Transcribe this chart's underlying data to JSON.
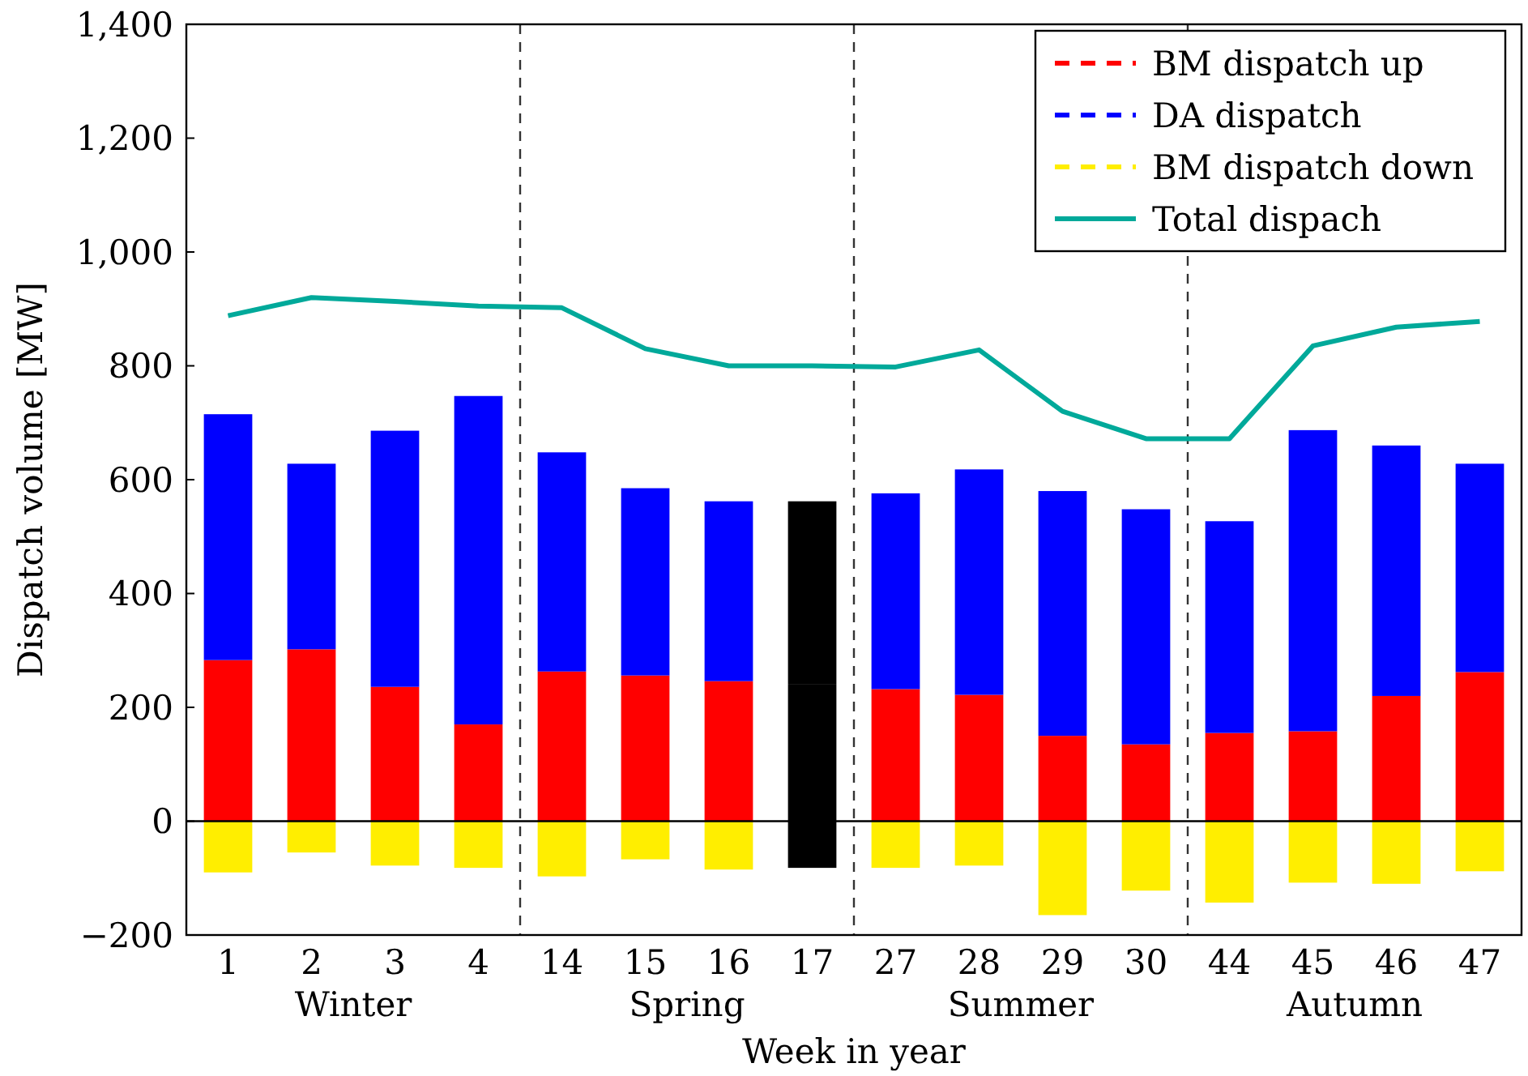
{
  "chart_data": {
    "type": "bar",
    "stacked": true,
    "xlabel": "Week in year",
    "ylabel": "Dispatch volume [MW]",
    "categories": [
      "1",
      "2",
      "3",
      "4",
      "14",
      "15",
      "16",
      "17",
      "27",
      "28",
      "29",
      "30",
      "44",
      "45",
      "46",
      "47"
    ],
    "ylim": [
      -200,
      1400
    ],
    "yticks": [
      {
        "value": -200,
        "label": "−200"
      },
      0,
      200,
      400,
      600,
      800,
      {
        "value": 1000,
        "label": "1,000"
      },
      {
        "value": 1200,
        "label": "1,200"
      },
      {
        "value": 1400,
        "label": "1,400"
      }
    ],
    "series": [
      {
        "name": "BM dispatch up",
        "color": "#ff0000",
        "colors": [
          "#ff0000",
          "#ff0000",
          "#ff0000",
          "#ff0000",
          "#ff0000",
          "#ff0000",
          "#ff0000",
          "#000000",
          "#ff0000",
          "#ff0000",
          "#ff0000",
          "#ff0000",
          "#ff0000",
          "#ff0000",
          "#ff0000",
          "#ff0000"
        ],
        "values": [
          283,
          302,
          236,
          170,
          263,
          256,
          246,
          240,
          232,
          222,
          150,
          135,
          155,
          158,
          220,
          262
        ]
      },
      {
        "name": "DA dispatch",
        "color": "#0000ff",
        "colors": [
          "#0000ff",
          "#0000ff",
          "#0000ff",
          "#0000ff",
          "#0000ff",
          "#0000ff",
          "#0000ff",
          "#000000",
          "#0000ff",
          "#0000ff",
          "#0000ff",
          "#0000ff",
          "#0000ff",
          "#0000ff",
          "#0000ff",
          "#0000ff"
        ],
        "values": [
          432,
          326,
          450,
          577,
          385,
          329,
          316,
          322,
          344,
          396,
          430,
          413,
          372,
          529,
          440,
          366
        ]
      },
      {
        "name": "BM dispatch down",
        "color": "#ffee00",
        "colors": [
          "#ffee00",
          "#ffee00",
          "#ffee00",
          "#ffee00",
          "#ffee00",
          "#ffee00",
          "#ffee00",
          "#000000",
          "#ffee00",
          "#ffee00",
          "#ffee00",
          "#ffee00",
          "#ffee00",
          "#ffee00",
          "#ffee00",
          "#ffee00"
        ],
        "values": [
          -90,
          -55,
          -78,
          -82,
          -97,
          -67,
          -85,
          -82,
          -82,
          -78,
          -165,
          -122,
          -143,
          -108,
          -110,
          -88
        ]
      },
      {
        "name": "Total dispach",
        "type": "line",
        "color": "#00a99a",
        "values": [
          888,
          920,
          913,
          905,
          902,
          830,
          800,
          800,
          798,
          828,
          720,
          672,
          672,
          835,
          868,
          878
        ]
      }
    ],
    "ref_lines": [
      {
        "axis": "y",
        "value": 0,
        "color": "#000000",
        "line_style": "solid"
      }
    ],
    "annotations": [
      "Winter",
      "Spring",
      "Summer",
      "Autumn"
    ],
    "legend": "top right",
    "grid": false
  }
}
